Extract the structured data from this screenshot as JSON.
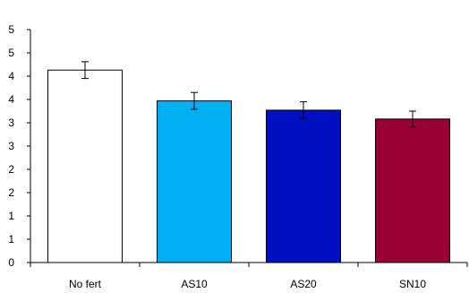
{
  "chart_data": {
    "type": "bar",
    "categories": [
      "No fert",
      "AS10",
      "AS20",
      "SN10"
    ],
    "values": [
      4.13,
      3.47,
      3.27,
      3.08
    ],
    "error": [
      0.18,
      0.18,
      0.18,
      0.17
    ],
    "ylim": [
      0,
      5
    ],
    "y_ticks": [
      0,
      0.5,
      1,
      1.5,
      2,
      2.5,
      3,
      3.5,
      4,
      4.5,
      5
    ],
    "y_tick_labels": [
      "0",
      "1",
      "1",
      "2",
      "2",
      "3",
      "3",
      "4",
      "4",
      "5",
      "5"
    ],
    "bar_colors": [
      "#ffffff",
      "#00b0f0",
      "#0010c0",
      "#990033"
    ],
    "bar_edge_color": "#000000",
    "grid": false,
    "legend": "none",
    "title": "",
    "xlabel": "",
    "ylabel": ""
  }
}
